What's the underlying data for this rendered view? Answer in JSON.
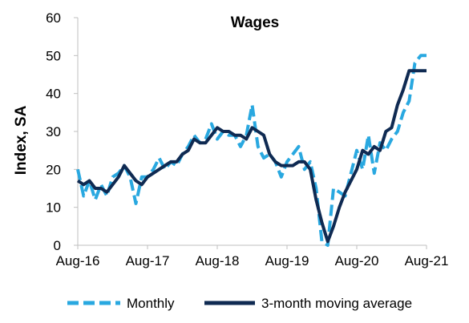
{
  "chart_data": {
    "type": "line",
    "title": "Wages",
    "xlabel": "",
    "ylabel": "Index, SA",
    "ylim": [
      0,
      60
    ],
    "yticks": [
      0,
      10,
      20,
      30,
      40,
      50,
      60
    ],
    "xticks": [
      "Aug-16",
      "Aug-17",
      "Aug-18",
      "Aug-19",
      "Aug-20",
      "Aug-21"
    ],
    "x_range": [
      "2016-08",
      "2021-08"
    ],
    "grid": false,
    "legend_position": "bottom",
    "x": [
      "2016-08",
      "2016-09",
      "2016-10",
      "2016-11",
      "2016-12",
      "2017-01",
      "2017-02",
      "2017-03",
      "2017-04",
      "2017-05",
      "2017-06",
      "2017-07",
      "2017-08",
      "2017-09",
      "2017-10",
      "2017-11",
      "2017-12",
      "2018-01",
      "2018-02",
      "2018-03",
      "2018-04",
      "2018-05",
      "2018-06",
      "2018-07",
      "2018-08",
      "2018-09",
      "2018-10",
      "2018-11",
      "2018-12",
      "2019-01",
      "2019-02",
      "2019-03",
      "2019-04",
      "2019-05",
      "2019-06",
      "2019-07",
      "2019-08",
      "2019-09",
      "2019-10",
      "2019-11",
      "2019-12",
      "2020-01",
      "2020-02",
      "2020-03",
      "2020-04",
      "2020-05",
      "2020-06",
      "2020-07",
      "2020-08",
      "2020-09",
      "2020-10",
      "2020-11",
      "2020-12",
      "2021-01",
      "2021-02",
      "2021-03",
      "2021-04",
      "2021-05",
      "2021-06",
      "2021-07",
      "2021-08"
    ],
    "series": [
      {
        "name": "Monthly",
        "color": "#29a8e0",
        "style": "dashed",
        "values": [
          20,
          13,
          17,
          12,
          16,
          13,
          18,
          19,
          21,
          18,
          11,
          18,
          18,
          20,
          23,
          20,
          22,
          21,
          24,
          26,
          29,
          27,
          28,
          32,
          28,
          30,
          29,
          29,
          26,
          29,
          37,
          26,
          23,
          24,
          22,
          18,
          22,
          24,
          26,
          20,
          22,
          15,
          1,
          0,
          15,
          14,
          13,
          19,
          25,
          20,
          29,
          19,
          27,
          25,
          28,
          30,
          35,
          38,
          48,
          50,
          50
        ],
        "values_note": ""
      },
      {
        "name": "3-month moving average",
        "color": "#0f2a52",
        "style": "solid",
        "values": [
          17,
          16,
          17,
          15,
          15,
          14,
          16,
          18,
          21,
          19,
          17,
          16,
          18,
          19,
          20,
          21,
          22,
          22,
          24,
          25,
          28,
          27,
          27,
          29,
          31,
          30,
          30,
          29,
          29,
          28,
          31,
          30,
          29,
          24,
          22,
          21,
          21,
          21,
          22,
          22,
          20,
          12,
          6,
          1,
          5,
          10,
          14,
          17,
          20,
          25,
          24,
          26,
          25,
          30,
          31,
          37,
          41,
          46,
          46,
          46,
          46
        ]
      }
    ]
  },
  "legend": {
    "items": [
      {
        "label": "Monthly",
        "color": "#29a8e0",
        "style": "dashed"
      },
      {
        "label": "3-month moving average",
        "color": "#0f2a52",
        "style": "solid"
      }
    ]
  }
}
